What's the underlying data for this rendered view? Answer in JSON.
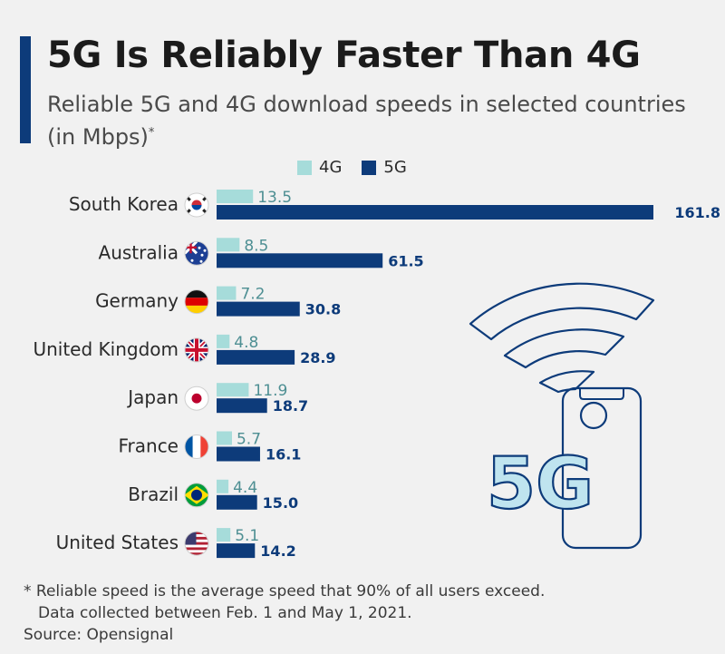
{
  "header": {
    "title": "5G Is Reliably Faster Than 4G",
    "subtitle": "Reliable 5G and 4G download speeds in selected countries (in Mbps)",
    "subtitle_mark": "*"
  },
  "footer": {
    "note_line1": "* Reliable speed is the average speed that 90% of all users exceed.",
    "note_line2": "Data collected between Feb. 1 and May 1, 2021.",
    "source": "Source: Opensignal"
  },
  "illustration": {
    "label": "5G"
  },
  "colors": {
    "4G": "#a6dcda",
    "5G": "#0d3b7a",
    "label4G": "#4e8f93",
    "label5G": "#0d3b7a"
  },
  "chart_data": {
    "type": "bar",
    "orientation": "horizontal",
    "title": "5G Is Reliably Faster Than 4G",
    "subtitle": "Reliable 5G and 4G download speeds in selected countries (in Mbps)*",
    "categories": [
      "South Korea",
      "Australia",
      "Germany",
      "United Kingdom",
      "Japan",
      "France",
      "Brazil",
      "United States"
    ],
    "flags": [
      "kr",
      "au",
      "de",
      "gb",
      "jp",
      "fr",
      "br",
      "us"
    ],
    "series": [
      {
        "name": "4G",
        "values": [
          13.5,
          8.5,
          7.2,
          4.8,
          11.9,
          5.7,
          4.4,
          5.1
        ]
      },
      {
        "name": "5G",
        "values": [
          161.8,
          61.5,
          30.8,
          28.9,
          18.7,
          16.1,
          15.0,
          14.2
        ]
      }
    ],
    "value_labels": {
      "4G": [
        "13.5",
        "8.5",
        "7.2",
        "4.8",
        "11.9",
        "5.7",
        "4.4",
        "5.1"
      ],
      "5G": [
        "161.8",
        "61.5",
        "30.8",
        "28.9",
        "18.7",
        "16.1",
        "15.0",
        "14.2"
      ]
    },
    "xlim": [
      0,
      161.8
    ],
    "legend": "top",
    "grid": false
  }
}
